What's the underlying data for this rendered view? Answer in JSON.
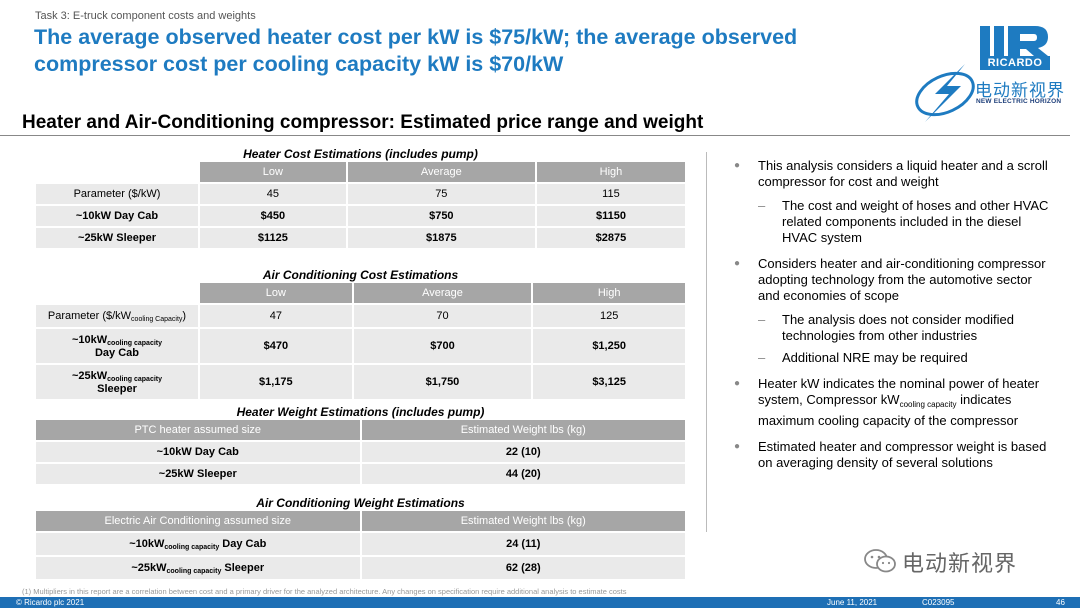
{
  "task_label": "Task 3: E-truck component costs and weights",
  "headline": "The average observed heater cost per kW is $75/kW; the average observed compressor cost per cooling capacity kW is $70/kW",
  "logo": {
    "brand": "RICARDO",
    "cn": "电动新视界",
    "en": "NEW ELECTRIC HORIZON",
    "color": "#1e7bc1"
  },
  "subtitle": "Heater and Air-Conditioning compressor: Estimated price range and weight",
  "heater_cost": {
    "title": "Heater Cost Estimations (includes pump)",
    "headers": [
      "Low",
      "Average",
      "High"
    ],
    "rows": [
      {
        "label": "Parameter ($/kW)",
        "values": [
          "45",
          "75",
          "115"
        ]
      },
      {
        "label": "~10kW  Day Cab",
        "values": [
          "$450",
          "$750",
          "$1150"
        ]
      },
      {
        "label": "~25kW Sleeper",
        "values": [
          "$1125",
          "$1875",
          "$2875"
        ]
      }
    ]
  },
  "ac_cost": {
    "title": "Air Conditioning Cost Estimations",
    "headers": [
      "Low",
      "Average",
      "High"
    ],
    "rows": [
      {
        "label_main": "Parameter ($/kW",
        "label_sub": "cooling Capacity",
        "label_tail": ")",
        "values": [
          "47",
          "70",
          "125"
        ]
      },
      {
        "label_main": "~10kW",
        "label_sub": "cooling capacity",
        "label_line2": "Day Cab",
        "values": [
          "$470",
          "$700",
          "$1,250"
        ]
      },
      {
        "label_main": "~25kW",
        "label_sub": "cooling capacity",
        "label_line2": "Sleeper",
        "values": [
          "$1,175",
          "$1,750",
          "$3,125"
        ]
      }
    ]
  },
  "heater_weight": {
    "title": "Heater Weight Estimations (includes pump)",
    "headers": [
      "PTC heater assumed size",
      "Estimated Weight lbs (kg)"
    ],
    "rows": [
      {
        "label": "~10kW Day Cab",
        "value": "22 (10)"
      },
      {
        "label": "~25kW Sleeper",
        "value": "44 (20)"
      }
    ]
  },
  "ac_weight": {
    "title": "Air Conditioning Weight Estimations",
    "headers": [
      "Electric Air Conditioning assumed size",
      "Estimated Weight lbs (kg)"
    ],
    "rows": [
      {
        "label_main": "~10kW",
        "label_sub": "cooling capacity",
        "label_tail": " Day Cab",
        "value": "24 (11)"
      },
      {
        "label_main": "~25kW",
        "label_sub": "cooling capacity",
        "label_tail": " Sleeper",
        "value": "62 (28)"
      }
    ]
  },
  "bullets": {
    "b1": "This analysis considers a liquid heater and a scroll compressor for cost and weight",
    "b1_sub1": "The cost and weight of hoses and other HVAC related components included in the diesel HVAC system",
    "b2": "Considers heater and air-conditioning compressor adopting technology from the automotive sector and economies of scope",
    "b2_sub1": "The analysis does not consider modified technologies from other industries",
    "b2_sub2": "Additional NRE may be required",
    "b3_part1": "Heater kW indicates the nominal power of heater system, Compressor kW",
    "b3_sub": "cooling capacity",
    "b3_part2": " indicates maximum cooling capacity of the compressor",
    "b4": "Estimated heater and compressor weight is based on averaging density of several solutions"
  },
  "wechat": "电动新视界",
  "footnote": "(1)  Multipliers in this report are a correlation between cost and a primary driver for the analyzed architecture. Any changes on specification require additional analysis to estimate costs",
  "footer": {
    "copyright": "© Ricardo plc 2021",
    "date": "June 11,  2021",
    "code": "C023095",
    "page": "46",
    "color": "#1e6fb5"
  }
}
